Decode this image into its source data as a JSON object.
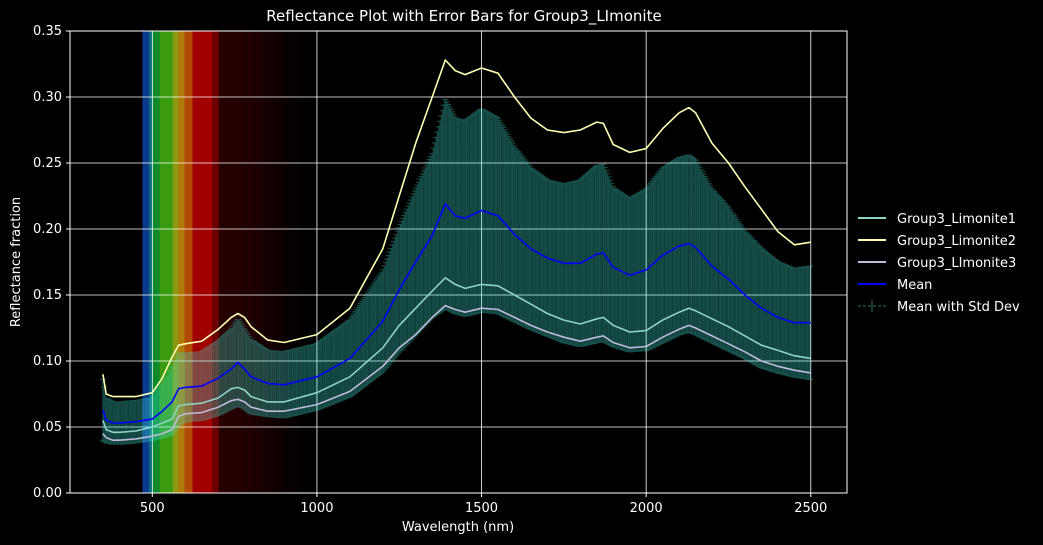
{
  "chart_data": {
    "type": "line",
    "title": "Reflectance Plot with Error Bars for Group3_LImonite",
    "xlabel": "Wavelength (nm)",
    "ylabel": "Reflectance fraction",
    "xlim": [
      250,
      2610
    ],
    "ylim": [
      0,
      0.35
    ],
    "xticks": [
      500,
      1000,
      1500,
      2000,
      2500
    ],
    "yticks": [
      0.0,
      0.05,
      0.1,
      0.15,
      0.2,
      0.25,
      0.3,
      0.35
    ],
    "grid": true,
    "legend_position": "right-outside",
    "background": "#000000",
    "visible_spectrum_band_nm": [
      470,
      950
    ],
    "series": [
      {
        "name": "Group3_Limonite1",
        "color": "#8dd3c7",
        "x": [
          350,
          360,
          380,
          400,
          450,
          500,
          530,
          560,
          580,
          600,
          650,
          700,
          740,
          760,
          780,
          800,
          850,
          900,
          1000,
          1100,
          1200,
          1250,
          1300,
          1350,
          1390,
          1420,
          1450,
          1500,
          1550,
          1600,
          1650,
          1700,
          1750,
          1800,
          1850,
          1870,
          1900,
          1950,
          2000,
          2050,
          2100,
          2130,
          2150,
          2200,
          2250,
          2300,
          2350,
          2400,
          2450,
          2500
        ],
        "values": [
          0.055,
          0.048,
          0.046,
          0.046,
          0.047,
          0.05,
          0.053,
          0.056,
          0.066,
          0.067,
          0.068,
          0.072,
          0.079,
          0.08,
          0.078,
          0.073,
          0.069,
          0.069,
          0.076,
          0.088,
          0.11,
          0.127,
          0.14,
          0.153,
          0.163,
          0.158,
          0.155,
          0.158,
          0.157,
          0.15,
          0.143,
          0.136,
          0.131,
          0.128,
          0.132,
          0.133,
          0.127,
          0.122,
          0.123,
          0.131,
          0.137,
          0.14,
          0.138,
          0.132,
          0.126,
          0.119,
          0.112,
          0.108,
          0.104,
          0.102
        ]
      },
      {
        "name": "Group3_Limonite2",
        "color": "#ffffb3",
        "x": [
          350,
          360,
          380,
          400,
          450,
          500,
          530,
          560,
          580,
          600,
          650,
          700,
          740,
          760,
          780,
          800,
          850,
          900,
          1000,
          1100,
          1200,
          1250,
          1300,
          1350,
          1390,
          1420,
          1450,
          1500,
          1550,
          1600,
          1650,
          1700,
          1750,
          1800,
          1850,
          1870,
          1900,
          1950,
          2000,
          2050,
          2100,
          2130,
          2150,
          2200,
          2250,
          2300,
          2350,
          2400,
          2450,
          2500
        ],
        "values": [
          0.09,
          0.075,
          0.073,
          0.073,
          0.073,
          0.076,
          0.087,
          0.103,
          0.112,
          0.113,
          0.115,
          0.124,
          0.133,
          0.136,
          0.133,
          0.126,
          0.116,
          0.114,
          0.12,
          0.14,
          0.185,
          0.225,
          0.265,
          0.3,
          0.328,
          0.32,
          0.317,
          0.322,
          0.318,
          0.3,
          0.284,
          0.275,
          0.273,
          0.275,
          0.281,
          0.28,
          0.264,
          0.258,
          0.261,
          0.276,
          0.288,
          0.292,
          0.288,
          0.265,
          0.25,
          0.232,
          0.215,
          0.198,
          0.188,
          0.19
        ]
      },
      {
        "name": "Group3_LImonite3",
        "color": "#bebada",
        "x": [
          350,
          360,
          380,
          400,
          450,
          500,
          530,
          560,
          580,
          600,
          650,
          700,
          740,
          760,
          780,
          800,
          850,
          900,
          1000,
          1100,
          1200,
          1250,
          1300,
          1350,
          1390,
          1420,
          1450,
          1500,
          1550,
          1600,
          1650,
          1700,
          1750,
          1800,
          1850,
          1870,
          1900,
          1950,
          2000,
          2050,
          2100,
          2130,
          2150,
          2200,
          2250,
          2300,
          2350,
          2400,
          2450,
          2500
        ],
        "values": [
          0.045,
          0.042,
          0.04,
          0.04,
          0.041,
          0.043,
          0.045,
          0.048,
          0.058,
          0.06,
          0.061,
          0.065,
          0.07,
          0.071,
          0.069,
          0.065,
          0.062,
          0.062,
          0.067,
          0.077,
          0.096,
          0.11,
          0.12,
          0.133,
          0.142,
          0.139,
          0.137,
          0.14,
          0.139,
          0.133,
          0.127,
          0.122,
          0.118,
          0.115,
          0.118,
          0.119,
          0.114,
          0.11,
          0.111,
          0.118,
          0.124,
          0.127,
          0.125,
          0.119,
          0.113,
          0.107,
          0.1,
          0.096,
          0.093,
          0.091
        ]
      },
      {
        "name": "Mean",
        "color": "#0000ff",
        "x": [
          350,
          360,
          380,
          400,
          450,
          500,
          530,
          560,
          580,
          600,
          650,
          700,
          740,
          760,
          780,
          800,
          850,
          900,
          1000,
          1100,
          1200,
          1250,
          1300,
          1350,
          1390,
          1420,
          1450,
          1500,
          1550,
          1600,
          1650,
          1700,
          1750,
          1800,
          1850,
          1870,
          1900,
          1950,
          2000,
          2050,
          2100,
          2130,
          2150,
          2200,
          2250,
          2300,
          2350,
          2400,
          2450,
          2500
        ],
        "values": [
          0.063,
          0.055,
          0.053,
          0.053,
          0.054,
          0.056,
          0.062,
          0.069,
          0.079,
          0.08,
          0.081,
          0.087,
          0.094,
          0.099,
          0.094,
          0.088,
          0.083,
          0.082,
          0.088,
          0.102,
          0.13,
          0.154,
          0.175,
          0.195,
          0.219,
          0.21,
          0.208,
          0.214,
          0.21,
          0.196,
          0.185,
          0.178,
          0.174,
          0.174,
          0.181,
          0.182,
          0.171,
          0.165,
          0.169,
          0.18,
          0.187,
          0.189,
          0.186,
          0.172,
          0.162,
          0.15,
          0.14,
          0.133,
          0.129,
          0.129
        ]
      }
    ],
    "error_series": {
      "name": "Mean with Std Dev",
      "color": "#40e0d0",
      "x": [
        350,
        360,
        380,
        400,
        450,
        500,
        530,
        560,
        580,
        600,
        650,
        700,
        740,
        760,
        780,
        800,
        850,
        900,
        1000,
        1100,
        1200,
        1250,
        1300,
        1350,
        1390,
        1420,
        1450,
        1500,
        1550,
        1600,
        1650,
        1700,
        1750,
        1800,
        1850,
        1870,
        1900,
        1950,
        2000,
        2050,
        2100,
        2130,
        2150,
        2200,
        2250,
        2300,
        2350,
        2400,
        2450,
        2500
      ],
      "lower": [
        0.04,
        0.038,
        0.037,
        0.037,
        0.038,
        0.04,
        0.042,
        0.044,
        0.052,
        0.054,
        0.055,
        0.059,
        0.064,
        0.066,
        0.064,
        0.06,
        0.058,
        0.057,
        0.063,
        0.073,
        0.092,
        0.107,
        0.12,
        0.133,
        0.14,
        0.136,
        0.134,
        0.137,
        0.136,
        0.13,
        0.124,
        0.119,
        0.114,
        0.111,
        0.114,
        0.115,
        0.111,
        0.107,
        0.108,
        0.114,
        0.12,
        0.122,
        0.12,
        0.114,
        0.108,
        0.102,
        0.095,
        0.091,
        0.088,
        0.086
      ],
      "upper": [
        0.086,
        0.072,
        0.069,
        0.069,
        0.07,
        0.072,
        0.082,
        0.094,
        0.106,
        0.106,
        0.107,
        0.115,
        0.124,
        0.132,
        0.124,
        0.116,
        0.108,
        0.107,
        0.113,
        0.131,
        0.168,
        0.201,
        0.23,
        0.257,
        0.298,
        0.284,
        0.282,
        0.291,
        0.284,
        0.262,
        0.246,
        0.237,
        0.234,
        0.237,
        0.248,
        0.249,
        0.231,
        0.223,
        0.23,
        0.246,
        0.254,
        0.256,
        0.252,
        0.23,
        0.216,
        0.198,
        0.185,
        0.175,
        0.17,
        0.172
      ]
    }
  }
}
